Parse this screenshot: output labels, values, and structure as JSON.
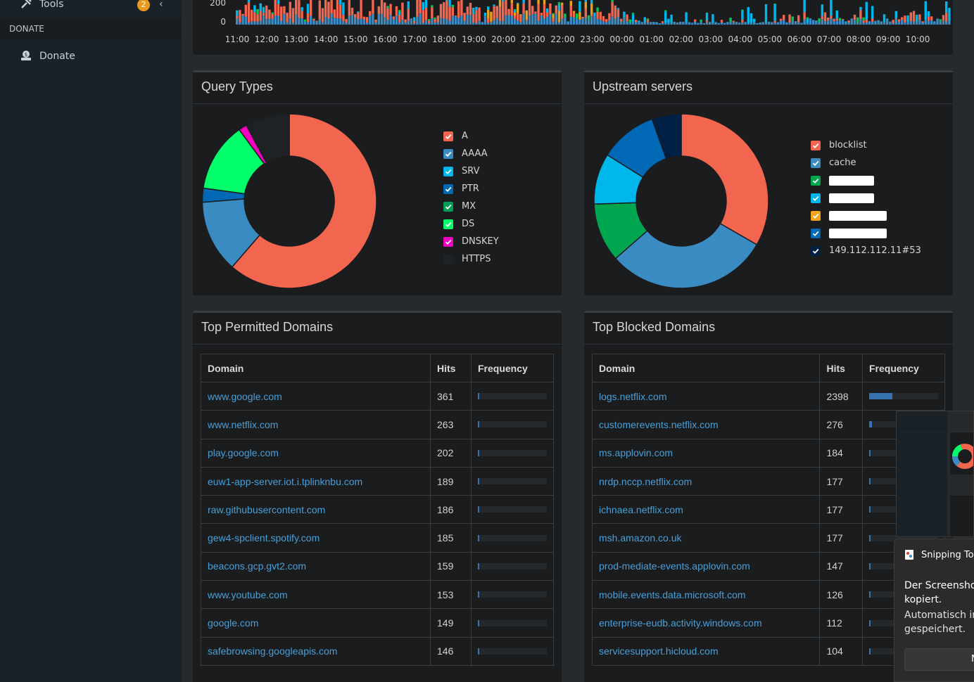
{
  "sidebar": {
    "tools_label": "Tools",
    "tools_badge": "2",
    "section_label": "DONATE",
    "donate_label": "Donate"
  },
  "timeline": {
    "y_ticks": [
      "200",
      "0"
    ],
    "x_ticks": [
      "11:00",
      "12:00",
      "13:00",
      "14:00",
      "15:00",
      "16:00",
      "17:00",
      "18:00",
      "19:00",
      "20:00",
      "21:00",
      "22:00",
      "23:00",
      "00:00",
      "01:00",
      "02:00",
      "03:00",
      "04:00",
      "05:00",
      "06:00",
      "07:00",
      "08:00",
      "09:00",
      "10:00"
    ]
  },
  "query_types": {
    "title": "Query Types",
    "legend": [
      {
        "label": "A",
        "color": "#f2654f"
      },
      {
        "label": "AAAA",
        "color": "#3a8bc2"
      },
      {
        "label": "SRV",
        "color": "#00b7ec"
      },
      {
        "label": "PTR",
        "color": "#0068b5"
      },
      {
        "label": "MX",
        "color": "#009e54"
      },
      {
        "label": "DS",
        "color": "#00ff6a"
      },
      {
        "label": "DNSKEY",
        "color": "#f400bf"
      },
      {
        "label": "HTTPS",
        "color": "#1f2225"
      }
    ]
  },
  "upstream_servers": {
    "title": "Upstream servers",
    "legend": [
      {
        "label": "blocklist",
        "color": "#f2654f"
      },
      {
        "label": "cache",
        "color": "#3a8bc2"
      },
      {
        "label": "",
        "color": "#00a550",
        "redacted": true
      },
      {
        "label": "",
        "color": "#00b7ec",
        "redacted": true
      },
      {
        "label": "",
        "color": "#f2a31a",
        "redacted": true
      },
      {
        "label": "",
        "color": "#0068b5",
        "redacted": true
      },
      {
        "label": "149.112.112.11#53",
        "color": "#001f45"
      }
    ]
  },
  "top_permitted": {
    "title": "Top Permitted Domains",
    "headers": [
      "Domain",
      "Hits",
      "Frequency"
    ],
    "rows": [
      {
        "domain": "www.google.com",
        "hits": "361"
      },
      {
        "domain": "www.netflix.com",
        "hits": "263"
      },
      {
        "domain": "play.google.com",
        "hits": "202"
      },
      {
        "domain": "euw1-app-server.iot.i.tplinknbu.com",
        "hits": "189"
      },
      {
        "domain": "raw.githubusercontent.com",
        "hits": "186"
      },
      {
        "domain": "gew4-spclient.spotify.com",
        "hits": "185"
      },
      {
        "domain": "beacons.gcp.gvt2.com",
        "hits": "159"
      },
      {
        "domain": "www.youtube.com",
        "hits": "153"
      },
      {
        "domain": "google.com",
        "hits": "149"
      },
      {
        "domain": "safebrowsing.googleapis.com",
        "hits": "146"
      }
    ]
  },
  "top_blocked": {
    "title": "Top Blocked Domains",
    "headers": [
      "Domain",
      "Hits",
      "Frequency"
    ],
    "rows": [
      {
        "domain": "logs.netflix.com",
        "hits": "2398",
        "freq": 0.34
      },
      {
        "domain": "customerevents.netflix.com",
        "hits": "276",
        "freq": 0.04
      },
      {
        "domain": "ms.applovin.com",
        "hits": "184",
        "freq": 0.02
      },
      {
        "domain": "nrdp.nccp.netflix.com",
        "hits": "177",
        "freq": 0.02
      },
      {
        "domain": "ichnaea.netflix.com",
        "hits": "177",
        "freq": 0.02
      },
      {
        "domain": "msh.amazon.co.uk",
        "hits": "177",
        "freq": 0.02
      },
      {
        "domain": "prod-mediate-events.applovin.com",
        "hits": "147",
        "freq": 0.02
      },
      {
        "domain": "mobile.events.data.microsoft.com",
        "hits": "126",
        "freq": 0.02
      },
      {
        "domain": "enterprise-eudb.activity.windows.com",
        "hits": "112",
        "freq": 0.02
      },
      {
        "domain": "servicesupport.hicloud.com",
        "hits": "104",
        "freq": 0.02
      }
    ]
  },
  "notification": {
    "app_name": "Snipping Tool",
    "message_line1": "Der Screenshot",
    "message_line2": "kopiert.",
    "detail_line1": "Automatisch in",
    "detail_line2": "gespeichert.",
    "button_label": "N"
  }
}
